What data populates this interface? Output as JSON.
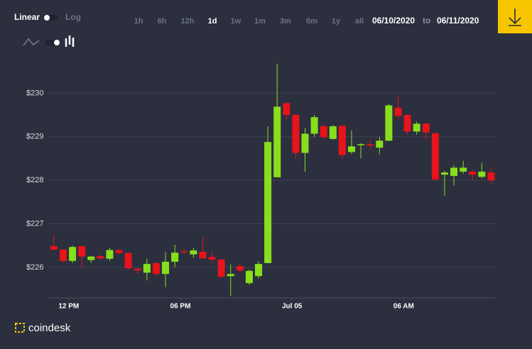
{
  "controls": {
    "scale_on": "Linear",
    "scale_off": "Log",
    "ranges": [
      "1h",
      "6h",
      "12h",
      "1d",
      "1w",
      "1m",
      "3m",
      "6m",
      "1y",
      "all"
    ],
    "active_range": 3,
    "from": "06/10/2020",
    "to": "to",
    "until": "06/11/2020"
  },
  "brand": "coindesk",
  "chart_data": {
    "type": "candlestick",
    "categories": [
      null,
      null,
      null,
      null,
      null,
      null,
      null,
      null,
      null,
      null,
      null,
      null,
      null,
      null,
      null,
      null,
      null,
      null,
      null,
      null,
      null,
      null,
      null,
      null,
      null,
      null,
      null,
      null,
      null,
      null,
      null,
      null,
      null,
      null,
      null,
      null,
      null,
      null,
      null,
      null,
      null,
      null,
      null,
      null,
      null,
      null,
      null,
      null
    ],
    "open": [
      226.49,
      226.41,
      226.15,
      226.49,
      226.17,
      226.26,
      226.2,
      226.4,
      226.33,
      225.97,
      225.88,
      226.1,
      225.85,
      226.13,
      226.37,
      226.3,
      226.36,
      226.24,
      226.18,
      225.8,
      226.03,
      225.64,
      225.8,
      226.1,
      228.07,
      229.77,
      229.5,
      228.63,
      229.07,
      229.24,
      228.95,
      229.25,
      228.65,
      228.82,
      228.83,
      228.75,
      228.91,
      229.67,
      229.5,
      229.12,
      229.3,
      229.08,
      228.13,
      228.1,
      228.2,
      228.2,
      228.08,
      228.18
    ],
    "high": [
      226.75,
      226.42,
      226.5,
      226.5,
      226.27,
      226.3,
      226.45,
      226.42,
      226.35,
      226.0,
      226.2,
      226.12,
      226.35,
      226.52,
      226.42,
      226.45,
      226.7,
      226.37,
      226.2,
      226.07,
      226.1,
      225.95,
      226.15,
      229.24,
      230.68,
      229.8,
      229.52,
      229.2,
      229.5,
      229.28,
      229.27,
      229.27,
      229.15,
      228.85,
      228.95,
      229.0,
      229.75,
      229.95,
      229.52,
      229.35,
      229.32,
      229.1,
      228.22,
      228.35,
      228.45,
      228.25,
      228.4,
      228.3
    ],
    "low": [
      226.38,
      226.1,
      226.1,
      226.0,
      226.1,
      226.18,
      226.15,
      226.3,
      225.93,
      225.85,
      225.7,
      225.8,
      225.55,
      226.0,
      226.3,
      226.22,
      226.2,
      226.1,
      225.75,
      225.35,
      225.9,
      225.6,
      225.75,
      226.1,
      228.07,
      229.4,
      228.5,
      228.2,
      229.0,
      228.95,
      228.93,
      228.5,
      228.6,
      228.5,
      228.7,
      228.6,
      228.9,
      229.4,
      229.05,
      229.05,
      228.9,
      227.98,
      227.65,
      227.88,
      228.15,
      228.0,
      228.05,
      227.92
    ],
    "close": [
      226.41,
      226.15,
      226.47,
      226.25,
      226.25,
      226.21,
      226.4,
      226.33,
      225.98,
      225.93,
      226.08,
      225.85,
      226.13,
      226.34,
      226.35,
      226.39,
      226.21,
      226.18,
      225.79,
      225.85,
      225.93,
      225.92,
      226.08,
      228.88,
      229.69,
      229.5,
      228.63,
      229.07,
      229.45,
      228.99,
      229.24,
      228.58,
      228.78,
      228.83,
      228.8,
      228.91,
      229.72,
      229.48,
      229.12,
      229.3,
      229.1,
      228.02,
      228.18,
      228.29,
      228.29,
      228.13,
      228.2,
      228.0
    ],
    "up_color": "#88de1c",
    "down_color": "#e8131b",
    "xlim": [
      -0.6,
      47.5
    ],
    "xticks": [
      {
        "value": 1.6,
        "label": "12 PM"
      },
      {
        "value": 13.6,
        "label": "06 PM"
      },
      {
        "value": 25.6,
        "label": "Jul 05"
      },
      {
        "value": 37.6,
        "label": "06 AM"
      }
    ],
    "ylim": [
      225.3,
      231
    ],
    "yticks": [
      {
        "value": 226,
        "label": "$226"
      },
      {
        "value": 227,
        "label": "$227"
      },
      {
        "value": 228,
        "label": "$228"
      },
      {
        "value": 229,
        "label": "$229"
      },
      {
        "value": 230,
        "label": "$230"
      }
    ],
    "grid": true
  }
}
